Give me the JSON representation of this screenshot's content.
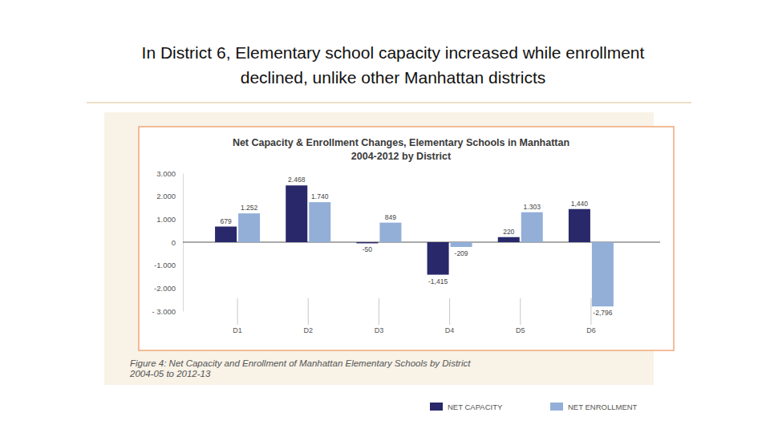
{
  "heading": [
    "In District 6, Elementary school capacity increased while enrollment",
    "declined, unlike other Manhattan districts"
  ],
  "chart_data": {
    "type": "bar",
    "title": "Net Capacity & Enrollment Changes, Elementary Schools in Manhattan",
    "subtitle": "2004-2012 by District",
    "annotations": [
      "Figure 4: Net Capacity and Enrollment of Manhattan Elementary Schools by District",
      "2004-05 to 2012-13"
    ],
    "categories": [
      "D1",
      "D2",
      "D3",
      "D4",
      "D5",
      "D6"
    ],
    "series": [
      {
        "name": "NET CAPACITY",
        "color": "#28286a",
        "values": [
          679,
          2468,
          -50,
          -1415,
          220,
          1440
        ],
        "value_labels": [
          "679",
          "2.468",
          "-50",
          "-1,415",
          "220",
          "1,440"
        ]
      },
      {
        "name": "NET ENROLLMENT",
        "color": "#93afd7",
        "values": [
          1252,
          1740,
          849,
          -209,
          1303,
          -2796
        ],
        "value_labels": [
          "1.252",
          "1.740",
          "849",
          "-209",
          "1.303",
          "-2,796"
        ]
      }
    ],
    "ylim": [
      -3000,
      3000
    ],
    "yticks": [
      {
        "value": 3000,
        "label": "3.000"
      },
      {
        "value": 2000,
        "label": "2.000"
      },
      {
        "value": 1000,
        "label": "1.000"
      },
      0,
      {
        "value": -1000,
        "label": "-1.000"
      },
      {
        "value": -2000,
        "label": "-2.000"
      },
      {
        "value": -3000,
        "label": "- 3.000"
      }
    ],
    "data_labels": true,
    "legend": "bottom"
  }
}
